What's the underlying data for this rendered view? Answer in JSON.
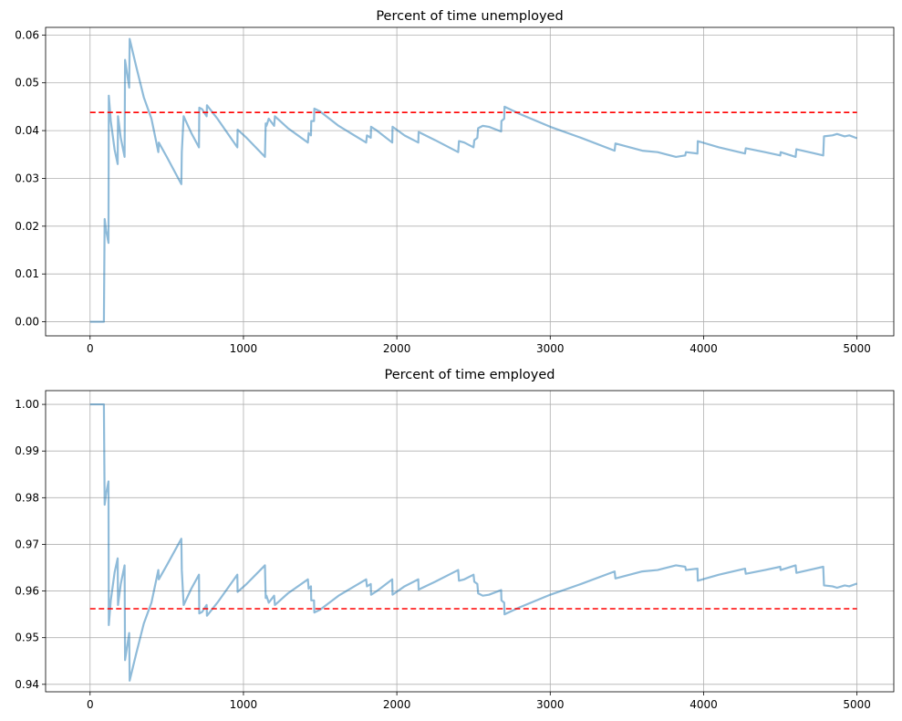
{
  "chart_data": [
    {
      "type": "line",
      "title": "Percent of time unemployed",
      "xlabel": "",
      "ylabel": "",
      "xlim": [
        -290,
        5240
      ],
      "ylim": [
        -0.00295,
        0.0616
      ],
      "xticks": [
        0,
        1000,
        2000,
        3000,
        4000,
        5000
      ],
      "xtick_labels": [
        "0",
        "1000",
        "2000",
        "3000",
        "4000",
        "5000"
      ],
      "yticks": [
        0.0,
        0.01,
        0.02,
        0.03,
        0.04,
        0.05,
        0.06
      ],
      "ytick_labels": [
        "0.00",
        "0.01",
        "0.02",
        "0.03",
        "0.04",
        "0.05",
        "0.06"
      ],
      "grid": true,
      "series": [
        {
          "color": "#1f77b4",
          "opacity": 0.5,
          "points": [
            [
              0,
              0.0
            ],
            [
              90,
              0.0
            ],
            [
              95,
              0.0215
            ],
            [
              105,
              0.019
            ],
            [
              120,
              0.0165
            ],
            [
              122,
              0.0473
            ],
            [
              135,
              0.042
            ],
            [
              160,
              0.036
            ],
            [
              180,
              0.033
            ],
            [
              182,
              0.043
            ],
            [
              200,
              0.0385
            ],
            [
              225,
              0.0345
            ],
            [
              228,
              0.0548
            ],
            [
              255,
              0.049
            ],
            [
              258,
              0.0592
            ],
            [
              300,
              0.0535
            ],
            [
              350,
              0.047
            ],
            [
              400,
              0.0425
            ],
            [
              445,
              0.0355
            ],
            [
              448,
              0.0375
            ],
            [
              500,
              0.0345
            ],
            [
              595,
              0.0288
            ],
            [
              598,
              0.0355
            ],
            [
              610,
              0.043
            ],
            [
              660,
              0.0395
            ],
            [
              710,
              0.0365
            ],
            [
              712,
              0.0448
            ],
            [
              730,
              0.0445
            ],
            [
              760,
              0.043
            ],
            [
              762,
              0.0453
            ],
            [
              830,
              0.0425
            ],
            [
              960,
              0.0365
            ],
            [
              962,
              0.0402
            ],
            [
              1020,
              0.0385
            ],
            [
              1140,
              0.0345
            ],
            [
              1145,
              0.0415
            ],
            [
              1150,
              0.041
            ],
            [
              1165,
              0.0425
            ],
            [
              1200,
              0.041
            ],
            [
              1205,
              0.043
            ],
            [
              1290,
              0.0405
            ],
            [
              1420,
              0.0375
            ],
            [
              1425,
              0.0395
            ],
            [
              1440,
              0.039
            ],
            [
              1442,
              0.042
            ],
            [
              1460,
              0.042
            ],
            [
              1462,
              0.0446
            ],
            [
              1500,
              0.044
            ],
            [
              1560,
              0.0425
            ],
            [
              1620,
              0.041
            ],
            [
              1800,
              0.0375
            ],
            [
              1805,
              0.039
            ],
            [
              1830,
              0.0385
            ],
            [
              1832,
              0.0408
            ],
            [
              1870,
              0.04
            ],
            [
              1970,
              0.0375
            ],
            [
              1972,
              0.0408
            ],
            [
              2050,
              0.039
            ],
            [
              2140,
              0.0375
            ],
            [
              2142,
              0.0397
            ],
            [
              2250,
              0.038
            ],
            [
              2400,
              0.0355
            ],
            [
              2405,
              0.0378
            ],
            [
              2440,
              0.0375
            ],
            [
              2500,
              0.0365
            ],
            [
              2505,
              0.038
            ],
            [
              2525,
              0.0385
            ],
            [
              2530,
              0.0405
            ],
            [
              2560,
              0.041
            ],
            [
              2600,
              0.0408
            ],
            [
              2680,
              0.0398
            ],
            [
              2682,
              0.042
            ],
            [
              2700,
              0.0425
            ],
            [
              2702,
              0.045
            ],
            [
              2800,
              0.0435
            ],
            [
              3000,
              0.0408
            ],
            [
              3200,
              0.0385
            ],
            [
              3420,
              0.0358
            ],
            [
              3425,
              0.0373
            ],
            [
              3600,
              0.0358
            ],
            [
              3700,
              0.0355
            ],
            [
              3820,
              0.0345
            ],
            [
              3880,
              0.0348
            ],
            [
              3885,
              0.0355
            ],
            [
              3960,
              0.0352
            ],
            [
              3962,
              0.0378
            ],
            [
              4100,
              0.0365
            ],
            [
              4270,
              0.0352
            ],
            [
              4275,
              0.0363
            ],
            [
              4400,
              0.0355
            ],
            [
              4500,
              0.0348
            ],
            [
              4502,
              0.0355
            ],
            [
              4600,
              0.0345
            ],
            [
              4605,
              0.0361
            ],
            [
              4780,
              0.0348
            ],
            [
              4785,
              0.0388
            ],
            [
              4840,
              0.039
            ],
            [
              4870,
              0.0393
            ],
            [
              4920,
              0.0388
            ],
            [
              4950,
              0.039
            ],
            [
              5000,
              0.0384
            ]
          ]
        }
      ],
      "reference_line": {
        "y": 0.0438,
        "x_start": 0,
        "x_end": 5000,
        "style": "dashed",
        "color": "#ff0000"
      }
    },
    {
      "type": "line",
      "title": "Percent of time employed",
      "xlabel": "",
      "ylabel": "",
      "xlim": [
        -290,
        5240
      ],
      "ylim": [
        0.9384,
        1.00295
      ],
      "xticks": [
        0,
        1000,
        2000,
        3000,
        4000,
        5000
      ],
      "xtick_labels": [
        "0",
        "1000",
        "2000",
        "3000",
        "4000",
        "5000"
      ],
      "yticks": [
        0.94,
        0.95,
        0.96,
        0.97,
        0.98,
        0.99,
        1.0
      ],
      "ytick_labels": [
        "0.94",
        "0.95",
        "0.96",
        "0.97",
        "0.98",
        "0.99",
        "1.00"
      ],
      "grid": true,
      "series": [
        {
          "color": "#1f77b4",
          "opacity": 0.5,
          "points": [
            [
              0,
              1.0
            ],
            [
              90,
              1.0
            ],
            [
              95,
              0.9785
            ],
            [
              105,
              0.981
            ],
            [
              120,
              0.9835
            ],
            [
              122,
              0.9527
            ],
            [
              135,
              0.958
            ],
            [
              160,
              0.964
            ],
            [
              180,
              0.967
            ],
            [
              182,
              0.957
            ],
            [
              200,
              0.9615
            ],
            [
              225,
              0.9655
            ],
            [
              228,
              0.9452
            ],
            [
              255,
              0.951
            ],
            [
              258,
              0.9408
            ],
            [
              300,
              0.9465
            ],
            [
              350,
              0.953
            ],
            [
              400,
              0.9575
            ],
            [
              445,
              0.9645
            ],
            [
              448,
              0.9625
            ],
            [
              500,
              0.9655
            ],
            [
              595,
              0.9712
            ],
            [
              598,
              0.9645
            ],
            [
              610,
              0.957
            ],
            [
              660,
              0.9605
            ],
            [
              710,
              0.9635
            ],
            [
              712,
              0.9552
            ],
            [
              730,
              0.9555
            ],
            [
              760,
              0.957
            ],
            [
              762,
              0.9547
            ],
            [
              830,
              0.9575
            ],
            [
              960,
              0.9635
            ],
            [
              962,
              0.9598
            ],
            [
              1020,
              0.9615
            ],
            [
              1140,
              0.9655
            ],
            [
              1145,
              0.9585
            ],
            [
              1150,
              0.959
            ],
            [
              1165,
              0.9575
            ],
            [
              1200,
              0.959
            ],
            [
              1205,
              0.957
            ],
            [
              1290,
              0.9595
            ],
            [
              1420,
              0.9625
            ],
            [
              1425,
              0.9605
            ],
            [
              1440,
              0.961
            ],
            [
              1442,
              0.958
            ],
            [
              1460,
              0.958
            ],
            [
              1462,
              0.9554
            ],
            [
              1500,
              0.956
            ],
            [
              1560,
              0.9575
            ],
            [
              1620,
              0.959
            ],
            [
              1800,
              0.9625
            ],
            [
              1805,
              0.961
            ],
            [
              1830,
              0.9615
            ],
            [
              1832,
              0.9592
            ],
            [
              1870,
              0.96
            ],
            [
              1970,
              0.9625
            ],
            [
              1972,
              0.9592
            ],
            [
              2050,
              0.961
            ],
            [
              2140,
              0.9625
            ],
            [
              2142,
              0.9603
            ],
            [
              2250,
              0.962
            ],
            [
              2400,
              0.9645
            ],
            [
              2405,
              0.9622
            ],
            [
              2440,
              0.9625
            ],
            [
              2500,
              0.9635
            ],
            [
              2505,
              0.962
            ],
            [
              2525,
              0.9615
            ],
            [
              2530,
              0.9595
            ],
            [
              2560,
              0.959
            ],
            [
              2600,
              0.9592
            ],
            [
              2680,
              0.9602
            ],
            [
              2682,
              0.958
            ],
            [
              2700,
              0.9575
            ],
            [
              2702,
              0.955
            ],
            [
              2800,
              0.9565
            ],
            [
              3000,
              0.9592
            ],
            [
              3200,
              0.9615
            ],
            [
              3420,
              0.9642
            ],
            [
              3425,
              0.9627
            ],
            [
              3600,
              0.9642
            ],
            [
              3700,
              0.9645
            ],
            [
              3820,
              0.9655
            ],
            [
              3880,
              0.9652
            ],
            [
              3885,
              0.9645
            ],
            [
              3960,
              0.9648
            ],
            [
              3962,
              0.9622
            ],
            [
              4100,
              0.9635
            ],
            [
              4270,
              0.9648
            ],
            [
              4275,
              0.9637
            ],
            [
              4400,
              0.9645
            ],
            [
              4500,
              0.9652
            ],
            [
              4502,
              0.9645
            ],
            [
              4600,
              0.9655
            ],
            [
              4605,
              0.9639
            ],
            [
              4780,
              0.9652
            ],
            [
              4785,
              0.9612
            ],
            [
              4840,
              0.961
            ],
            [
              4870,
              0.9607
            ],
            [
              4920,
              0.9612
            ],
            [
              4950,
              0.961
            ],
            [
              5000,
              0.9616
            ]
          ]
        }
      ],
      "reference_line": {
        "y": 0.9562,
        "x_start": 0,
        "x_end": 5000,
        "style": "dashed",
        "color": "#ff0000"
      }
    }
  ]
}
